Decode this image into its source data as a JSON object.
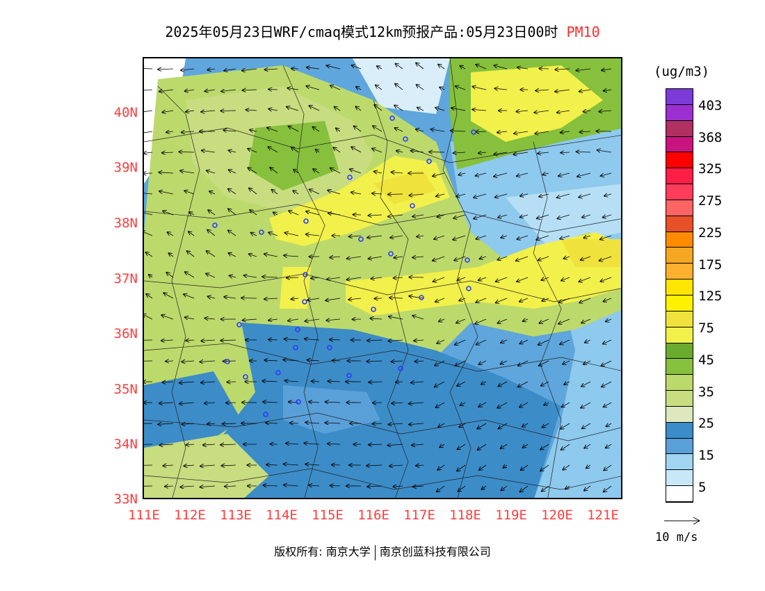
{
  "title": {
    "main": "2025年05月23日WRF/cmaq模式12km预报产品:05月23日00时",
    "variable": "PM10"
  },
  "axes": {
    "lat_labels": [
      "40N",
      "39N",
      "38N",
      "37N",
      "36N",
      "35N",
      "34N",
      "33N"
    ],
    "lon_labels": [
      "111E",
      "112E",
      "113E",
      "114E",
      "115E",
      "116E",
      "117E",
      "118E",
      "119E",
      "120E",
      "121E"
    ],
    "lat_range": [
      33,
      41
    ],
    "lon_range": [
      111,
      121.4
    ]
  },
  "colorbar": {
    "unit": "(ug/m3)",
    "labels": [
      "403",
      "368",
      "325",
      "275",
      "225",
      "175",
      "125",
      "75",
      "45",
      "35",
      "25",
      "15",
      "5"
    ],
    "colors": [
      "#7c3ad8",
      "#9b2fd0",
      "#b03060",
      "#c8147e",
      "#ff0000",
      "#ff1e46",
      "#ff3c5a",
      "#ff6464",
      "#e8502a",
      "#ff8c00",
      "#f5a623",
      "#ffb02e",
      "#ffe600",
      "#fff200",
      "#f0e23c",
      "#f2f04a",
      "#6aab2e",
      "#86c03c",
      "#bcd96c",
      "#c8dc80",
      "#dde8be",
      "#3c8cc8",
      "#5aa0d8",
      "#a0d4f0",
      "#c8e8f8",
      "#ffffff"
    ]
  },
  "vector_legend": {
    "label": "10 m/s"
  },
  "copyright": {
    "left": "版权所有: 南京大学",
    "right": "南京创蓝科技有限公司"
  }
}
